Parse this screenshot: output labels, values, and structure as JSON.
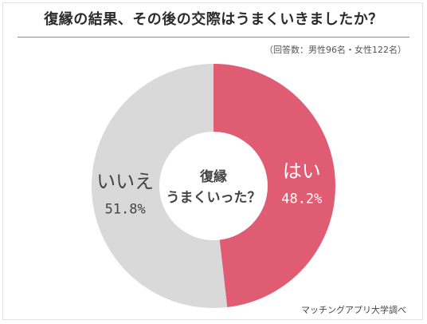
{
  "header": {
    "title": "復縁の結果、その後の交際はうまくいきましたか？",
    "subtitle": "（回答数：男性96名・女性122名）"
  },
  "footer": {
    "source": "マッチングアプリ大学調べ"
  },
  "chart_data": {
    "type": "pie",
    "style": "donut",
    "center_label": [
      "復縁",
      "うまくいった？"
    ],
    "slices": [
      {
        "label": "はい",
        "value": 48.2,
        "value_label": "48.2%",
        "color": "#e05c73",
        "text_color": "#ffffff"
      },
      {
        "label": "いいえ",
        "value": 51.8,
        "value_label": "51.8%",
        "color": "#d9d9d9",
        "text_color": "#444444"
      }
    ],
    "start": "top",
    "direction": "clockwise"
  }
}
